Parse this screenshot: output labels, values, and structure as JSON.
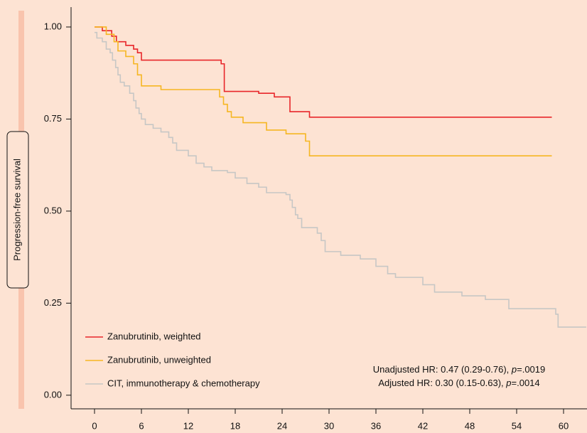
{
  "chart_data": {
    "type": "line",
    "step": true,
    "y_label": "Progression-free survival",
    "xlim": [
      -3,
      63
    ],
    "ylim": [
      -0.037,
      1.054
    ],
    "xticks": [
      0,
      6,
      12,
      18,
      24,
      30,
      36,
      42,
      48,
      54,
      60
    ],
    "yticks": [
      {
        "value": 0,
        "label": "0.00"
      },
      0.25,
      {
        "value": 0.5,
        "label": "0.50"
      },
      0.75,
      {
        "value": 1,
        "label": "1.00"
      }
    ],
    "series": [
      {
        "name": "Zanubrutinib, weighted",
        "color": "#e8262a",
        "x": [
          0,
          1,
          2.2,
          2.8,
          4,
          5,
          5.5,
          6,
          16.2,
          16.6,
          21,
          23,
          25,
          27.5,
          58.5
        ],
        "values": [
          1.0,
          0.99,
          0.975,
          0.96,
          0.95,
          0.94,
          0.93,
          0.91,
          0.9,
          0.825,
          0.82,
          0.81,
          0.77,
          0.755,
          0.755
        ]
      },
      {
        "name": "Zanubrutinib, unweighted",
        "color": "#f6b622",
        "x": [
          0,
          1.5,
          2.5,
          3,
          4,
          5,
          5.5,
          6,
          8.5,
          16,
          16.5,
          17,
          17.5,
          19,
          22,
          24.5,
          27,
          27.5,
          58.5
        ],
        "values": [
          1.0,
          0.98,
          0.96,
          0.935,
          0.92,
          0.9,
          0.87,
          0.84,
          0.83,
          0.81,
          0.79,
          0.77,
          0.755,
          0.74,
          0.72,
          0.71,
          0.69,
          0.65,
          0.65
        ]
      },
      {
        "name": "CIT, immunotherapy & chemotherapy",
        "color": "#c7c7c5",
        "x": [
          0,
          0.3,
          1,
          1.5,
          2,
          2.3,
          2.7,
          3,
          3.3,
          3.8,
          4.5,
          5,
          5.3,
          5.7,
          6,
          6.5,
          7.5,
          8.5,
          9.5,
          10,
          10.5,
          12,
          13,
          14,
          15,
          17,
          18,
          19.5,
          21,
          22,
          24.5,
          25,
          25.3,
          25.7,
          26,
          26.5,
          28.5,
          29,
          29.5,
          31.5,
          34,
          36,
          37.5,
          38.5,
          42,
          43.5,
          47,
          50,
          53,
          59,
          59.3,
          62.9
        ],
        "values": [
          0.985,
          0.97,
          0.96,
          0.94,
          0.93,
          0.91,
          0.89,
          0.87,
          0.85,
          0.84,
          0.82,
          0.8,
          0.78,
          0.765,
          0.75,
          0.735,
          0.725,
          0.715,
          0.7,
          0.685,
          0.665,
          0.65,
          0.63,
          0.62,
          0.61,
          0.605,
          0.59,
          0.575,
          0.565,
          0.55,
          0.545,
          0.53,
          0.51,
          0.49,
          0.48,
          0.455,
          0.44,
          0.42,
          0.39,
          0.38,
          0.37,
          0.35,
          0.33,
          0.32,
          0.3,
          0.28,
          0.27,
          0.26,
          0.235,
          0.22,
          0.185,
          0.185
        ]
      }
    ],
    "annotations": [
      [
        "Unadjusted HR: 0.47 (0.29-0.76), ",
        "p",
        "=.0019"
      ],
      [
        "Adjusted HR: 0.30 (0.15-0.63), ",
        "p",
        "=.0014"
      ]
    ]
  }
}
